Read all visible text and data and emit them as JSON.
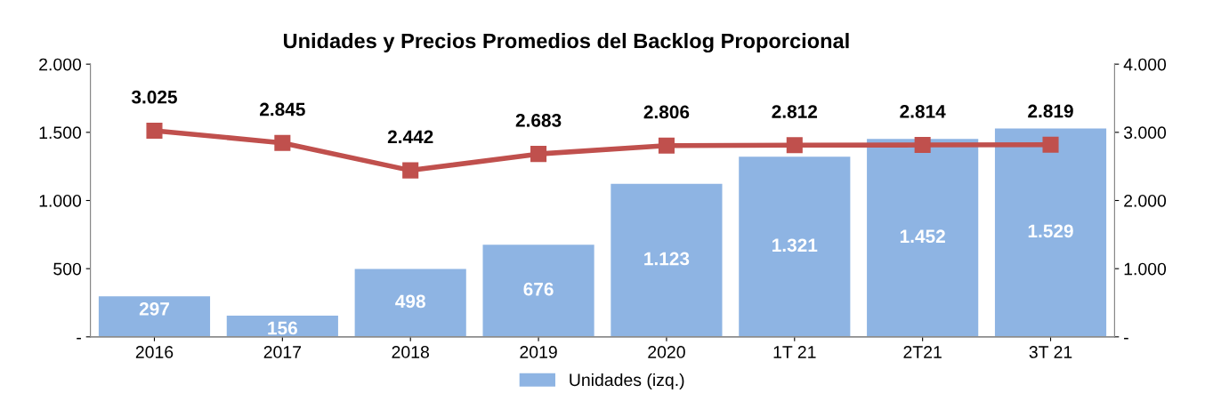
{
  "chart_data": {
    "type": "bar",
    "title": "Unidades y Precios Promedios del Backlog Proporcional",
    "categories": [
      "2016",
      "2017",
      "2018",
      "2019",
      "2020",
      "1T 21",
      "2T21",
      "3T 21"
    ],
    "series": [
      {
        "name": "Unidades (izq.)",
        "color": "#8eb4e3",
        "values": [
          297,
          156,
          498,
          676,
          1123,
          1321,
          1452,
          1529
        ]
      },
      {
        "type": "line",
        "axis": "y2",
        "color": "#c0504d",
        "marker": "square",
        "values": [
          3025,
          2845,
          2442,
          2683,
          2806,
          2812,
          2814,
          2819
        ]
      }
    ],
    "value_labels": [
      [
        "297",
        "156",
        "498",
        "676",
        "1.123",
        "1.321",
        "1.452",
        "1.529"
      ],
      [
        "3.025",
        "2.845",
        "2.442",
        "2.683",
        "2.806",
        "2.812",
        "2.814",
        "2.819"
      ]
    ],
    "ylim": [
      0,
      2000
    ],
    "yticks": [
      {
        "value": 0,
        "label": "-"
      },
      {
        "value": 500,
        "label": "500"
      },
      {
        "value": 1000,
        "label": "1.000"
      },
      {
        "value": 1500,
        "label": "1.500"
      },
      {
        "value": 2000,
        "label": "2.000"
      }
    ],
    "y2lim": [
      0,
      4000
    ],
    "y2ticks": [
      {
        "value": 0,
        "label": "-"
      },
      {
        "value": 1000,
        "label": "1.000"
      },
      {
        "value": 2000,
        "label": "2.000"
      },
      {
        "value": 3000,
        "label": "3.000"
      },
      {
        "value": 4000,
        "label": "4.000"
      }
    ],
    "legend": "bottom",
    "grid": false
  }
}
